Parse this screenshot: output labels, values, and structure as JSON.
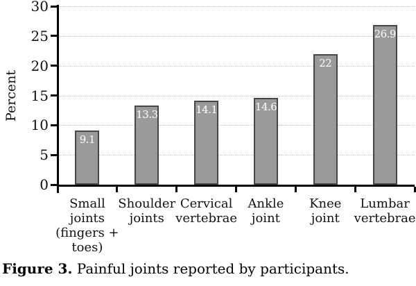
{
  "caption": {
    "label": "Figure 3.",
    "text": "Painful joints reported by participants."
  },
  "chart_data": {
    "type": "bar",
    "title": "",
    "xlabel": "",
    "ylabel": "Percent",
    "categories": [
      "Small joints (fingers + toes)",
      "Shoulder joints",
      "Cervical vertebrae",
      "Ankle joint",
      "Knee joint",
      "Lumbar vertebrae"
    ],
    "tick_labels": [
      "Small\njoints\n(fingers +\ntoes)",
      "Shoulder\njoints",
      "Cervical\nvertebrae",
      "Ankle\njoint",
      "Knee\njoint",
      "Lumbar\nvertebrae"
    ],
    "values": [
      9.1,
      13.3,
      14.1,
      14.6,
      22,
      26.9
    ],
    "value_labels": [
      "9.1",
      "13.3",
      "14.1",
      "14.6",
      "22",
      "26.9"
    ],
    "ylim": [
      0,
      30
    ],
    "yticks": [
      0,
      5,
      10,
      15,
      20,
      25,
      30
    ],
    "grid": "horizontal dotted, at every y tick above 0",
    "legend": "none",
    "colors": {
      "bar_fill": "#9a9a9a",
      "bar_border": "#474747",
      "gridline": "#c2c2c2",
      "axis": "#000000",
      "value_label": "#ffffff",
      "background": "#ffffff"
    }
  }
}
